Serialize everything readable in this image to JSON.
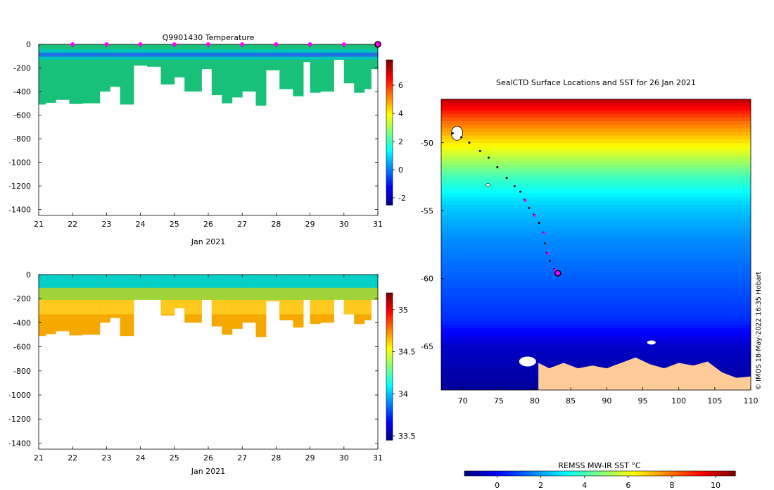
{
  "figure": {
    "credit": "© IMOS 18-May-2022 16:35 Hobart"
  },
  "colors": {
    "jet": [
      "#00007f",
      "#0000ff",
      "#007fff",
      "#00ffff",
      "#7fff7f",
      "#ffff00",
      "#ff7f00",
      "#ff0000",
      "#7f0000"
    ],
    "temp_fill": "#19c07a",
    "temp_surface": "#00c5b8",
    "temp_cold": "#1f6fe0",
    "sal_fill": "#f5a800",
    "sal_fill_light": "#ffc91e",
    "sal_mid": "#9fd43a",
    "sal_surface": "#00d0c8",
    "land": "#ffcc99",
    "track_dot": "#000000",
    "profile_marker": "#ff00ff",
    "end_ring": "#000000"
  },
  "chart_data": [
    {
      "id": "temperature",
      "type": "heatmap",
      "title": "Q9901430  Temperature",
      "xlabel": "Jan 2021",
      "ylabel": "",
      "xlim": [
        21,
        31
      ],
      "ylim": [
        -1450,
        0
      ],
      "xticks": [
        21,
        22,
        23,
        24,
        25,
        26,
        27,
        28,
        29,
        30,
        31
      ],
      "yticks": [
        0,
        -200,
        -400,
        -600,
        -800,
        -1000,
        -1200,
        -1400
      ],
      "colorbar": {
        "ticks": [
          -2,
          0,
          2,
          4,
          6
        ],
        "range": [
          -2.5,
          7.8
        ]
      },
      "marker_days": [
        22,
        23,
        24,
        25,
        26,
        27,
        28,
        29,
        30
      ],
      "end_day": 31,
      "profiles": [
        {
          "x": 21.0,
          "depth": 510
        },
        {
          "x": 21.2,
          "depth": 495
        },
        {
          "x": 21.5,
          "depth": 470
        },
        {
          "x": 21.9,
          "depth": 505
        },
        {
          "x": 22.3,
          "depth": 500
        },
        {
          "x": 22.8,
          "depth": 400
        },
        {
          "x": 23.1,
          "depth": 360
        },
        {
          "x": 23.4,
          "depth": 510
        },
        {
          "x": 23.8,
          "depth": 180
        },
        {
          "x": 24.2,
          "depth": 190
        },
        {
          "x": 24.6,
          "depth": 340
        },
        {
          "x": 25.0,
          "depth": 280
        },
        {
          "x": 25.3,
          "depth": 400
        },
        {
          "x": 25.8,
          "depth": 210
        },
        {
          "x": 26.1,
          "depth": 430
        },
        {
          "x": 26.4,
          "depth": 500
        },
        {
          "x": 26.7,
          "depth": 450
        },
        {
          "x": 27.0,
          "depth": 400
        },
        {
          "x": 27.4,
          "depth": 520
        },
        {
          "x": 27.7,
          "depth": 220
        },
        {
          "x": 28.1,
          "depth": 380
        },
        {
          "x": 28.5,
          "depth": 440
        },
        {
          "x": 28.8,
          "depth": 150
        },
        {
          "x": 29.0,
          "depth": 410
        },
        {
          "x": 29.3,
          "depth": 400
        },
        {
          "x": 29.7,
          "depth": 130
        },
        {
          "x": 30.0,
          "depth": 330
        },
        {
          "x": 30.3,
          "depth": 410
        },
        {
          "x": 30.6,
          "depth": 380
        },
        {
          "x": 30.8,
          "depth": 210
        },
        {
          "x": 31.0,
          "depth": 200
        }
      ]
    },
    {
      "id": "salinity",
      "type": "heatmap",
      "title": "",
      "xlabel": "Jan 2021",
      "ylabel": "",
      "xlim": [
        21,
        31
      ],
      "ylim": [
        -1450,
        0
      ],
      "xticks": [
        21,
        22,
        23,
        24,
        25,
        26,
        27,
        28,
        29,
        30,
        31
      ],
      "yticks": [
        0,
        -200,
        -400,
        -600,
        -800,
        -1000,
        -1200,
        -1400
      ],
      "colorbar": {
        "ticks": [
          33.5,
          34,
          34.5,
          35
        ],
        "range": [
          33.45,
          35.2
        ]
      }
    },
    {
      "id": "sst_map",
      "type": "heatmap",
      "title": "SealCTD Surface Locations and SST for 26 Jan 2021",
      "xlabel": "",
      "ylabel": "",
      "xlim": [
        67,
        110
      ],
      "ylim": [
        -68.2,
        -46.8
      ],
      "xticks": [
        70,
        75,
        80,
        85,
        90,
        95,
        100,
        105,
        110
      ],
      "yticks": [
        -50,
        -55,
        -60,
        -65
      ],
      "colorbar": {
        "label": "REMSS MW-IR SST °C",
        "ticks": [
          0,
          2,
          4,
          6,
          8,
          10
        ],
        "range": [
          -1.5,
          10.9
        ]
      },
      "sst_bands": [
        {
          "lat": -46.8,
          "sst": 10.2
        },
        {
          "lat": -48.5,
          "sst": 8.0
        },
        {
          "lat": -50.5,
          "sst": 6.0
        },
        {
          "lat": -52.5,
          "sst": 4.0
        },
        {
          "lat": -54.5,
          "sst": 2.6
        },
        {
          "lat": -57.0,
          "sst": 1.8
        },
        {
          "lat": -60.0,
          "sst": 1.2
        },
        {
          "lat": -63.0,
          "sst": 0.6
        },
        {
          "lat": -65.0,
          "sst": -0.6
        },
        {
          "lat": -68.2,
          "sst": -1.2
        }
      ],
      "track": [
        {
          "lon": 68.6,
          "lat": -49.3
        },
        {
          "lon": 69.8,
          "lat": -49.6
        },
        {
          "lon": 70.9,
          "lat": -50.0
        },
        {
          "lon": 72.4,
          "lat": -50.6
        },
        {
          "lon": 73.6,
          "lat": -51.1
        },
        {
          "lon": 74.8,
          "lat": -51.8
        },
        {
          "lon": 76.1,
          "lat": -52.6
        },
        {
          "lon": 77.2,
          "lat": -53.2
        },
        {
          "lon": 78.0,
          "lat": -53.6
        },
        {
          "lon": 78.6,
          "lat": -54.2
        },
        {
          "lon": 79.2,
          "lat": -54.8
        },
        {
          "lon": 79.9,
          "lat": -55.3
        },
        {
          "lon": 80.6,
          "lat": -55.9
        },
        {
          "lon": 81.2,
          "lat": -56.6
        },
        {
          "lon": 81.4,
          "lat": -57.4
        },
        {
          "lon": 81.7,
          "lat": -58.1
        },
        {
          "lon": 82.1,
          "lat": -58.7
        },
        {
          "lon": 82.7,
          "lat": -59.3
        }
      ],
      "markers": [
        {
          "lon": 78.6,
          "lat": -54.2
        },
        {
          "lon": 79.9,
          "lat": -55.3
        },
        {
          "lon": 81.2,
          "lat": -56.6
        },
        {
          "lon": 81.7,
          "lat": -58.1
        },
        {
          "lon": 82.7,
          "lat": -59.3
        }
      ],
      "end": {
        "lon": 83.2,
        "lat": -59.6
      }
    }
  ]
}
